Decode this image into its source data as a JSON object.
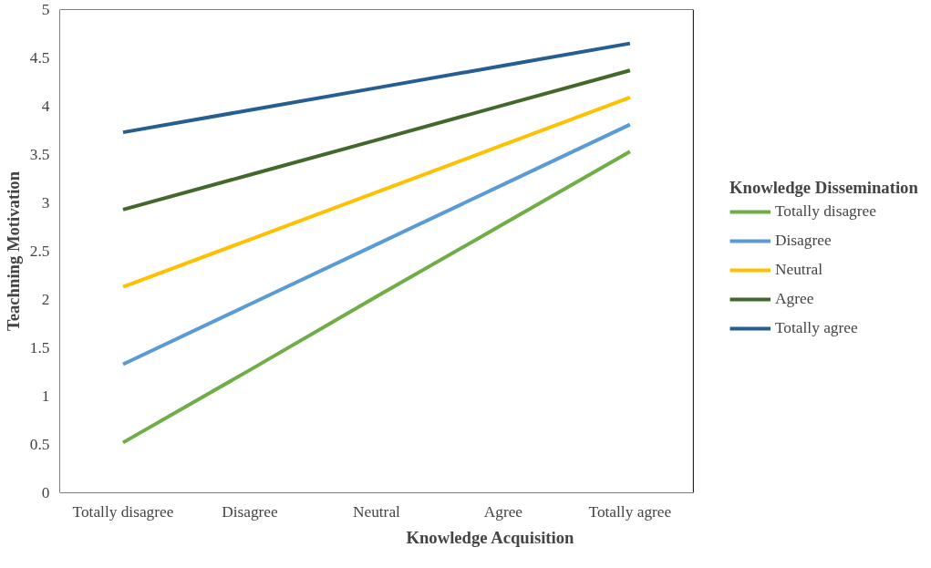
{
  "chart_data": {
    "type": "line",
    "xlabel": "Knowledge Acquisition",
    "ylabel": "Teachning Motivation",
    "legend_title": "Knowledge Dissemination",
    "legend": "right",
    "grid": false,
    "categories": [
      "Totally disagree",
      "Disagree",
      "Neutral",
      "Agree",
      "Totally agree"
    ],
    "ylim": [
      0,
      5
    ],
    "yticks": [
      0,
      0.5,
      1,
      1.5,
      2,
      2.5,
      3,
      3.5,
      4,
      4.5,
      5
    ],
    "series": [
      {
        "name": "Totally disagree",
        "color": "#70ad47",
        "values": [
          0.52,
          1.27,
          2.03,
          2.78,
          3.53
        ]
      },
      {
        "name": "Disagree",
        "color": "#5b9bd5",
        "values": [
          1.33,
          1.95,
          2.57,
          3.19,
          3.81
        ]
      },
      {
        "name": "Neutral",
        "color": "#ffc000",
        "values": [
          2.13,
          2.62,
          3.11,
          3.6,
          4.09
        ]
      },
      {
        "name": "Agree",
        "color": "#43682b",
        "values": [
          2.93,
          3.29,
          3.65,
          4.01,
          4.37
        ]
      },
      {
        "name": "Totally agree",
        "color": "#255e91",
        "values": [
          3.73,
          3.96,
          4.19,
          4.42,
          4.65
        ]
      }
    ]
  }
}
